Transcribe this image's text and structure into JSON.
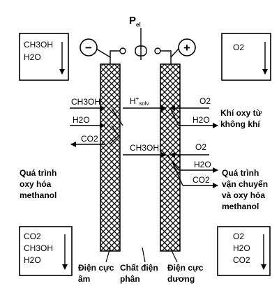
{
  "power": {
    "symbol": "P",
    "subscript": "el"
  },
  "electrodes": {
    "negative_sign": "−",
    "positive_sign": "+"
  },
  "boxes": {
    "top_left": [
      "CH3OH",
      "H2O"
    ],
    "top_right": [
      "O2"
    ],
    "bottom_left": [
      "CO2",
      "CH3OH",
      "H2O"
    ],
    "bottom_right": [
      "O2",
      "H2O",
      "CO2"
    ]
  },
  "species": {
    "ch3oh_in": "CH3OH",
    "h2o_in": "H2O",
    "co2_out": "CO2",
    "proton_main": "H",
    "proton_sup": "+",
    "proton_sub": "solv",
    "o2_top": "O2",
    "h2o_right_top": "H2O",
    "ch3oh_cross": "CH3OH",
    "o2_mid": "O2",
    "h2o_right_mid": "H2O",
    "co2_right": "CO2"
  },
  "annotations": {
    "left_process": [
      "Quá trình",
      "oxy hóa",
      "methanol"
    ],
    "right_air": [
      "Khí oxy từ",
      "không khí"
    ],
    "right_process": [
      "Quá trình",
      "vận chuyển",
      "và oxy hóa",
      "methanol"
    ]
  },
  "bottom_labels": {
    "anode": [
      "Điện cực",
      "âm"
    ],
    "electrolyte": [
      "Chất điện",
      "phân"
    ],
    "cathode": [
      "Điện cực",
      "dương"
    ]
  }
}
